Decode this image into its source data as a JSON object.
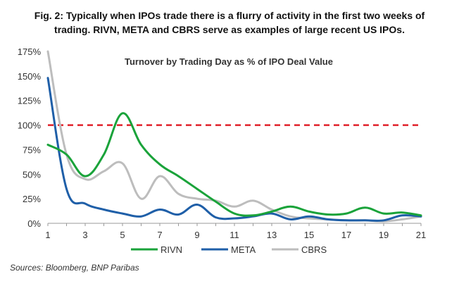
{
  "figure": {
    "title_line1": "Fig. 2: Typically when IPOs trade there is a flurry of activity in the first two weeks of",
    "title_line2": "trading. RIVN, META and CBRS serve as examples of large recent US IPOs.",
    "source": "Sources: Bloomberg, BNP Paribas"
  },
  "colors": {
    "RIVN": "#1aa33a",
    "META": "#1f5fa8",
    "CBRS": "#bdbdbd",
    "reference_line": "#e0202a",
    "axis": "#999999"
  },
  "chart_data": {
    "type": "line",
    "title": "Turnover by Trading Day as % of IPO Deal Value",
    "xlabel": "",
    "ylabel": "",
    "xlim": [
      1,
      21
    ],
    "ylim": [
      0,
      175
    ],
    "x_ticks": [
      1,
      3,
      5,
      7,
      9,
      11,
      13,
      15,
      17,
      19,
      21
    ],
    "y_ticks": [
      0,
      25,
      50,
      75,
      100,
      125,
      150,
      175
    ],
    "y_tick_labels": [
      "0%",
      "25%",
      "50%",
      "75%",
      "100%",
      "125%",
      "150%",
      "175%"
    ],
    "grid": false,
    "legend_position": "bottom",
    "reference_line": {
      "y": 100,
      "style": "dashed"
    },
    "x": [
      1,
      2,
      3,
      4,
      5,
      6,
      7,
      8,
      9,
      10,
      11,
      12,
      13,
      14,
      15,
      16,
      17,
      18,
      19,
      20,
      21
    ],
    "series": [
      {
        "name": "RIVN",
        "values": [
          80,
          70,
          48,
          70,
          112,
          80,
          60,
          48,
          35,
          22,
          10,
          8,
          12,
          17,
          12,
          9,
          10,
          16,
          10,
          11,
          8
        ]
      },
      {
        "name": "META",
        "values": [
          148,
          35,
          20,
          14,
          10,
          7,
          14,
          9,
          19,
          6,
          5,
          7,
          10,
          4,
          7,
          4,
          3,
          3,
          3,
          8,
          7
        ]
      },
      {
        "name": "CBRS",
        "values": [
          175,
          70,
          45,
          53,
          61,
          25,
          48,
          30,
          25,
          23,
          17,
          23,
          14,
          7,
          5,
          4,
          3,
          3,
          2,
          4,
          7
        ]
      }
    ]
  }
}
